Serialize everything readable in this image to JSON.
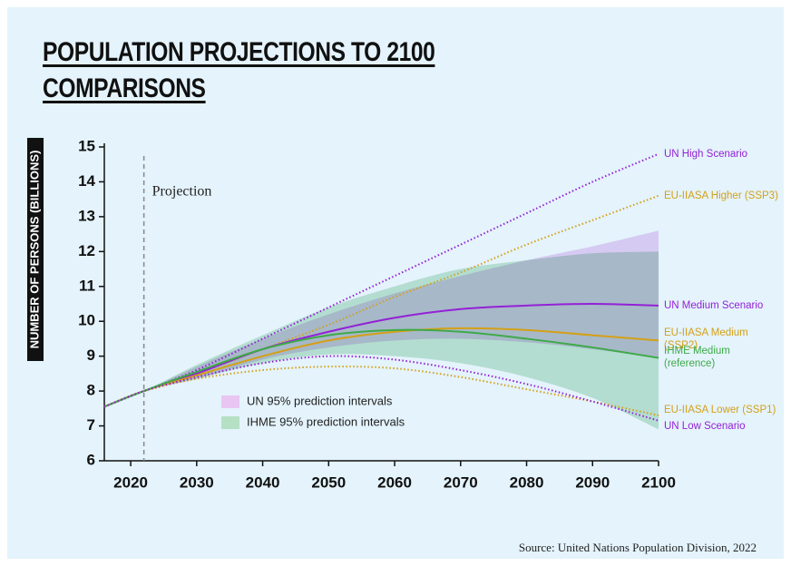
{
  "chart_data": {
    "type": "line",
    "title": "POPULATION PROJECTIONS TO 2100\nCOMPARISONS",
    "y_label": "NUMBER OF PERSONS (BILLIONS)",
    "annotation": "Projection",
    "projection_year": 2022,
    "source": "Source: United Nations Population Division, 2022",
    "x": [
      2016,
      2022,
      2030,
      2040,
      2050,
      2060,
      2070,
      2080,
      2090,
      2100
    ],
    "xlim": [
      2016,
      2100
    ],
    "xticks": [
      2020,
      2030,
      2040,
      2050,
      2060,
      2070,
      2080,
      2090,
      2100
    ],
    "ylim": [
      6,
      15
    ],
    "yticks": [
      6,
      7,
      8,
      9,
      10,
      11,
      12,
      13,
      14,
      15
    ],
    "bands": [
      {
        "name": "UN 95% prediction intervals",
        "color": "#e9c6f2",
        "upper": [
          7.55,
          8.0,
          8.7,
          9.5,
          10.2,
          10.8,
          11.3,
          11.75,
          12.15,
          12.6
        ],
        "lower": [
          7.55,
          8.0,
          8.35,
          8.9,
          9.25,
          9.45,
          9.5,
          9.4,
          9.2,
          8.95
        ]
      },
      {
        "name": "IHME 95% prediction intervals",
        "color": "#b5e0c4",
        "upper": [
          7.55,
          8.0,
          8.75,
          9.6,
          10.4,
          11.0,
          11.5,
          11.75,
          11.95,
          12.0
        ],
        "lower": [
          7.55,
          8.0,
          8.35,
          8.8,
          9.05,
          9.0,
          8.8,
          8.4,
          7.8,
          6.9
        ]
      }
    ],
    "series": [
      {
        "name": "UN High Scenario",
        "color": "#9421d6",
        "style": "dotted",
        "values": [
          7.55,
          8.0,
          8.6,
          9.5,
          10.4,
          11.3,
          12.2,
          13.1,
          14.0,
          14.8
        ]
      },
      {
        "name": "EU-IIASA Higher (SSP3)",
        "color": "#d4a017",
        "style": "dotted",
        "values": [
          7.55,
          8.0,
          8.5,
          9.2,
          9.9,
          10.7,
          11.4,
          12.2,
          12.9,
          13.6
        ]
      },
      {
        "name": "UN Medium Scenario",
        "color": "#9421d6",
        "style": "solid",
        "values": [
          7.55,
          8.0,
          8.5,
          9.2,
          9.7,
          10.1,
          10.35,
          10.45,
          10.5,
          10.45
        ]
      },
      {
        "name": "EU-IIASA Medium\n(SSP2)",
        "color": "#d4a017",
        "style": "solid",
        "values": [
          7.55,
          8.0,
          8.45,
          9.0,
          9.45,
          9.7,
          9.8,
          9.75,
          9.6,
          9.45
        ]
      },
      {
        "name": "IHME Medium\n(reference)",
        "color": "#3daa48",
        "style": "solid",
        "values": [
          7.55,
          8.0,
          8.55,
          9.2,
          9.6,
          9.75,
          9.7,
          9.5,
          9.25,
          8.95
        ]
      },
      {
        "name": "EU-IIASA Lower (SSP1)",
        "color": "#d4a017",
        "style": "dotted",
        "values": [
          7.55,
          8.0,
          8.35,
          8.6,
          8.7,
          8.65,
          8.4,
          8.05,
          7.7,
          7.3
        ]
      },
      {
        "name": "UN Low Scenario",
        "color": "#9421d6",
        "style": "dotted",
        "values": [
          7.55,
          8.0,
          8.4,
          8.8,
          9.0,
          8.9,
          8.6,
          8.2,
          7.7,
          7.15
        ]
      }
    ]
  }
}
